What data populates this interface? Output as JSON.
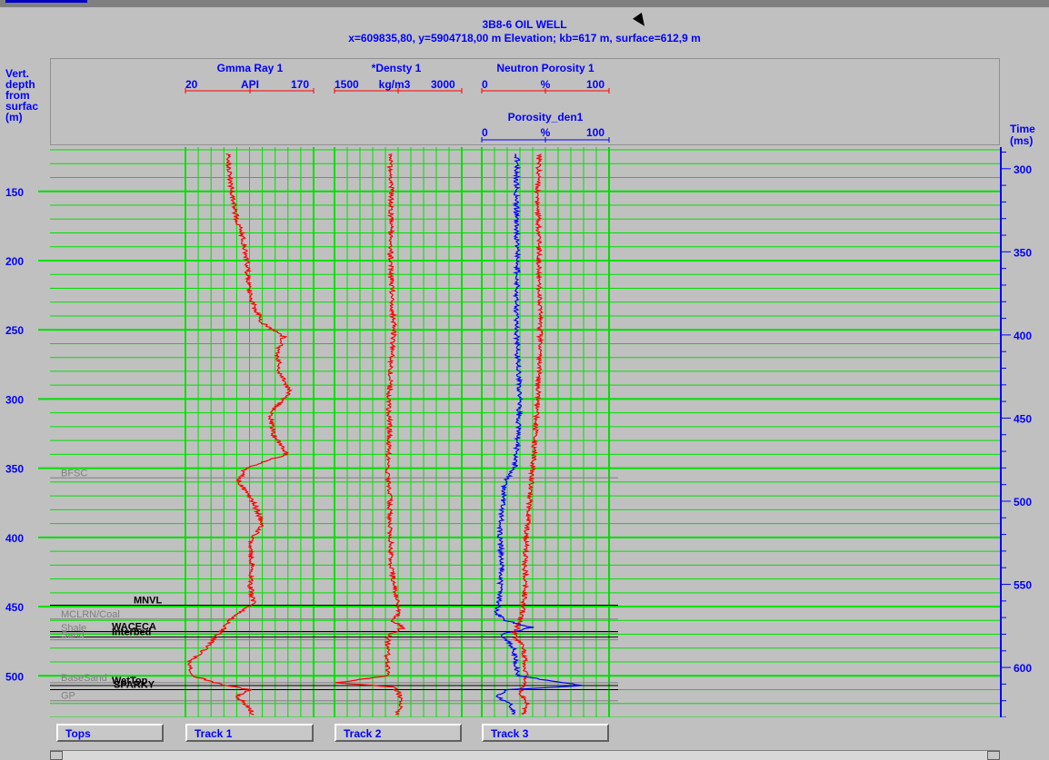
{
  "well": {
    "title": "3B8-6 OIL WELL",
    "subtitle": "x=609835,80, y=5904718,00 m Elevation; kb=617 m, surface=612,9 m"
  },
  "left_axis_title": [
    "Vert.",
    "depth",
    "from",
    "surfac",
    "(m)"
  ],
  "right_axis_title": [
    "Time",
    "(ms)"
  ],
  "curves": [
    {
      "name": "Gmma Ray 1",
      "min": "20",
      "unit": "API",
      "max": "170",
      "color": "#ff0000"
    },
    {
      "name": "*Densty 1",
      "min": "1500",
      "unit": "kg/m3",
      "max": "3000",
      "color": "#ff0000"
    },
    {
      "name": "Neutron Porosity 1",
      "min": "0",
      "unit": "%",
      "max": "100",
      "color": "#ff0000"
    },
    {
      "name": "Porosity_den1",
      "min": "0",
      "unit": "%",
      "max": "100",
      "color": "#0000ff"
    }
  ],
  "buttons": {
    "tops": "Tops",
    "track1": "Track 1",
    "track2": "Track 2",
    "track3": "Track 3"
  },
  "colors": {
    "grid": "#00e000",
    "gr_curve": "#ff0000",
    "den_curve": "#ff0000",
    "neu_curve": "#ff0000",
    "porden_curve": "#0000ff",
    "axis_text": "#0000ff"
  },
  "chart_data": {
    "type": "line",
    "title": "3B8-6 OIL WELL",
    "depth_range_m": [
      118,
      530
    ],
    "depth_ticks": [
      150,
      200,
      250,
      300,
      350,
      400,
      450,
      500
    ],
    "time_range_ms": [
      287,
      630
    ],
    "time_ticks": [
      300,
      350,
      400,
      450,
      500,
      550,
      600
    ],
    "ylabel": "Vert. depth from surfac (m)",
    "y2label": "Time (ms)",
    "grid": true,
    "tops": [
      {
        "name": "BFSC",
        "depth": 357,
        "color": "#808080"
      },
      {
        "name": "MNVL",
        "depth": 449,
        "color": "#000000"
      },
      {
        "name": "MCLRN/Coal",
        "depth": 459,
        "color": "#808080"
      },
      {
        "name": "Shale",
        "depth": 469,
        "color": "#808080"
      },
      {
        "name": "WACECA",
        "depth": 468,
        "color": "#000000"
      },
      {
        "name": "Interbed",
        "depth": 472,
        "color": "#000000"
      },
      {
        "name": "Sand",
        "depth": 474,
        "color": "#808080"
      },
      {
        "name": "BaseSand",
        "depth": 505,
        "color": "#808080"
      },
      {
        "name": "WetTop",
        "depth": 507,
        "color": "#000000"
      },
      {
        "name": "SPARKY",
        "depth": 510,
        "color": "#000000"
      },
      {
        "name": "GP",
        "depth": 518,
        "color": "#808080"
      }
    ],
    "series": [
      {
        "name": "Gmma Ray 1",
        "xlim": [
          20,
          170
        ],
        "color": "#ff0000",
        "depth": [
          123,
          140,
          155,
          170,
          185,
          200,
          215,
          230,
          245,
          255,
          265,
          280,
          295,
          310,
          325,
          340,
          350,
          360,
          375,
          390,
          405,
          420,
          435,
          448,
          458,
          466,
          472,
          480,
          490,
          500,
          506,
          510,
          515,
          520,
          528
        ],
        "values": [
          70,
          72,
          75,
          80,
          88,
          92,
          93,
          98,
          110,
          135,
          128,
          130,
          142,
          120,
          122,
          138,
          90,
          82,
          100,
          110,
          95,
          98,
          96,
          100,
          75,
          65,
          55,
          45,
          25,
          28,
          60,
          95,
          80,
          90,
          100
        ]
      },
      {
        "name": "*Densty 1",
        "xlim": [
          1500,
          3000
        ],
        "color": "#ff0000",
        "depth": [
          123,
          150,
          200,
          250,
          300,
          330,
          350,
          370,
          400,
          420,
          445,
          455,
          460,
          465,
          470,
          480,
          500,
          505,
          508,
          512,
          520,
          528
        ],
        "values": [
          2150,
          2170,
          2160,
          2200,
          2140,
          2150,
          2120,
          2150,
          2160,
          2170,
          2230,
          2260,
          2180,
          2320,
          2140,
          2120,
          2130,
          1520,
          2180,
          2250,
          2300,
          2220
        ]
      },
      {
        "name": "Neutron Porosity 1",
        "xlim": [
          0,
          100
        ],
        "color": "#ff0000",
        "depth": [
          123,
          150,
          200,
          250,
          300,
          350,
          380,
          400,
          420,
          440,
          455,
          460,
          465,
          470,
          480,
          500,
          508,
          512,
          520,
          528
        ],
        "values": [
          45,
          44,
          45,
          46,
          44,
          40,
          37,
          35,
          34,
          34,
          32,
          30,
          28,
          25,
          33,
          35,
          32,
          30,
          36,
          33
        ]
      },
      {
        "name": "Porosity_den1",
        "xlim": [
          0,
          100
        ],
        "color": "#0000ff",
        "depth": [
          123,
          150,
          200,
          250,
          300,
          330,
          350,
          360,
          400,
          420,
          440,
          455,
          460,
          465,
          470,
          480,
          500,
          507,
          510,
          515,
          520,
          528
        ],
        "values": [
          28,
          27,
          28,
          27,
          30,
          28,
          26,
          18,
          14,
          16,
          14,
          12,
          18,
          40,
          15,
          25,
          28,
          80,
          20,
          12,
          22,
          26
        ]
      }
    ]
  }
}
